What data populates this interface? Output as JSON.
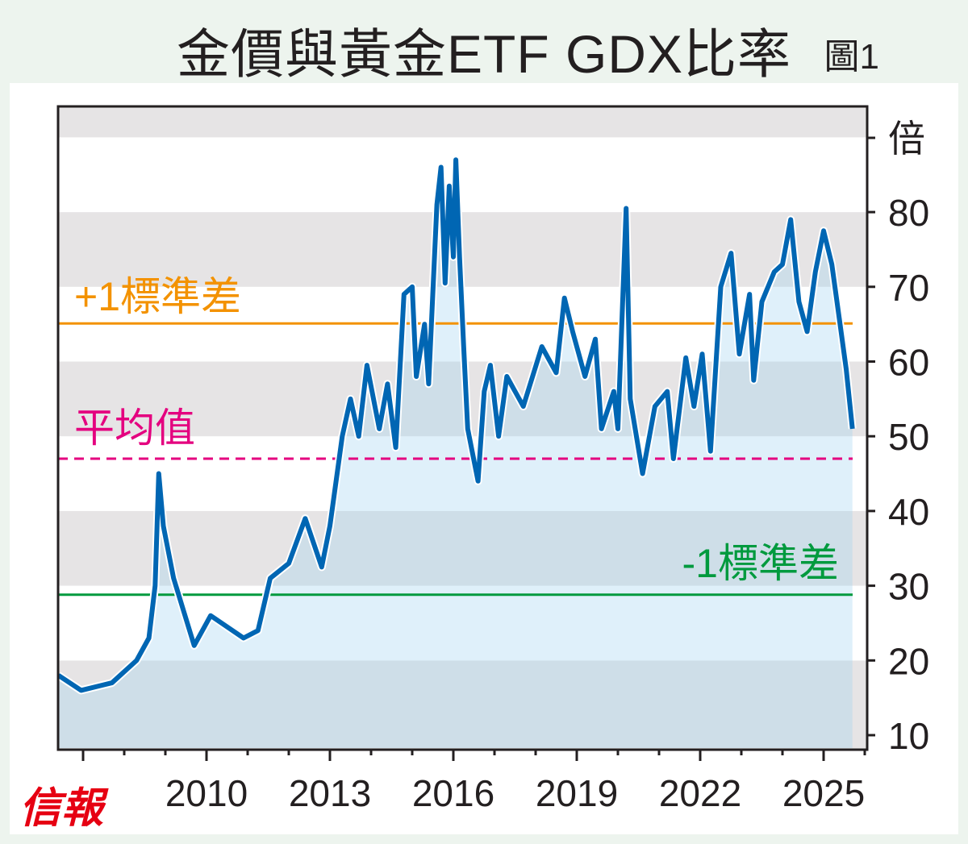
{
  "chart_data": {
    "type": "line",
    "title": "金價與黃金ETF GDX比率",
    "figure_label": "圖1",
    "ylabel": "倍",
    "ylim": [
      10,
      94
    ],
    "xlim": [
      2006.4,
      2026.1
    ],
    "yticks": [
      10,
      20,
      30,
      40,
      50,
      60,
      70,
      80
    ],
    "xtick_labels": [
      "2010",
      "2013",
      "2016",
      "2019",
      "2022",
      "2025"
    ],
    "xticks": [
      2010,
      2013,
      2016,
      2019,
      2022,
      2025
    ],
    "grid": "alternating horizontal bands",
    "reference_lines": [
      {
        "label": "+1標準差",
        "value": 65.1,
        "color": "#f39200",
        "style": "solid"
      },
      {
        "label": "平均值",
        "value": 47.0,
        "color": "#e4007f",
        "style": "dashed"
      },
      {
        "label": "-1標準差",
        "value": 28.8,
        "color": "#009a3e",
        "style": "solid"
      }
    ],
    "series": [
      {
        "name": "金價與GDX比率",
        "color": "#0066b3",
        "x": [
          2006.4,
          2006.95,
          2007.7,
          2008.3,
          2008.6,
          2008.75,
          2008.84,
          2008.95,
          2009.2,
          2009.7,
          2010.1,
          2010.9,
          2011.25,
          2011.55,
          2012.0,
          2012.4,
          2012.8,
          2013.0,
          2013.3,
          2013.5,
          2013.7,
          2013.9,
          2014.2,
          2014.4,
          2014.6,
          2014.8,
          2015.0,
          2015.1,
          2015.3,
          2015.4,
          2015.6,
          2015.7,
          2015.8,
          2015.9,
          2016.0,
          2016.06,
          2016.15,
          2016.25,
          2016.35,
          2016.6,
          2016.75,
          2016.9,
          2017.1,
          2017.3,
          2017.7,
          2018.15,
          2018.5,
          2018.7,
          2018.9,
          2019.2,
          2019.45,
          2019.6,
          2019.9,
          2020.0,
          2020.2,
          2020.3,
          2020.6,
          2020.9,
          2021.2,
          2021.35,
          2021.65,
          2021.85,
          2022.05,
          2022.25,
          2022.5,
          2022.75,
          2022.95,
          2023.2,
          2023.3,
          2023.5,
          2023.8,
          2024.0,
          2024.2,
          2024.4,
          2024.6,
          2024.8,
          2025.0,
          2025.2,
          2025.4,
          2025.55,
          2025.7
        ],
        "y": [
          18,
          16,
          17,
          20,
          23,
          30,
          45,
          38,
          31,
          22,
          26,
          23,
          24,
          31,
          33,
          39,
          32.5,
          38,
          50,
          55,
          50,
          59.5,
          51,
          57,
          48.5,
          69,
          70,
          58,
          65,
          57,
          81,
          86,
          70.5,
          83.5,
          74,
          87,
          74,
          62,
          51,
          44,
          56,
          59.5,
          50,
          58,
          54,
          62,
          58.5,
          68.5,
          64,
          58,
          63,
          51,
          56,
          51,
          80.5,
          55,
          45,
          54,
          56,
          47,
          60.5,
          54,
          61,
          48,
          70,
          74.5,
          61,
          69,
          57.5,
          68,
          72,
          73,
          79,
          68,
          64,
          72,
          77.5,
          73,
          65,
          59,
          51
        ]
      }
    ]
  },
  "brand": "信報"
}
